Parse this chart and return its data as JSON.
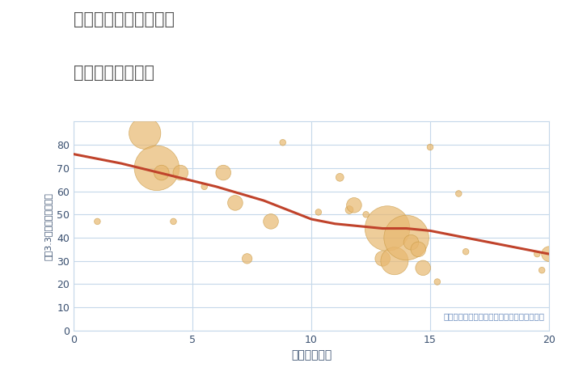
{
  "title_line1": "兵庫県宝塚市大原野の",
  "title_line2": "駅距離別土地価格",
  "xlabel": "駅距離（分）",
  "ylabel": "坪（3.3㎡）単価（万円）",
  "annotation": "円の大きさは、取引のあった物件面積を示す",
  "fig_bg_color": "#ffffff",
  "plot_bg_color": "#ffffff",
  "grid_color": "#c5d8ea",
  "scatter_color": "#e8b870",
  "scatter_alpha": 0.7,
  "scatter_edge_color": "#c89840",
  "scatter_edge_width": 0.5,
  "trend_color": "#c0432b",
  "trend_lw": 2.2,
  "title_color": "#555555",
  "axis_color": "#3a5070",
  "annotation_color": "#6688bb",
  "xlim": [
    0,
    20
  ],
  "ylim": [
    0,
    90
  ],
  "xticks": [
    0,
    5,
    10,
    15,
    20
  ],
  "yticks": [
    0,
    10,
    20,
    30,
    40,
    50,
    60,
    70,
    80
  ],
  "scatter_x": [
    1,
    3,
    3.5,
    3.7,
    4.2,
    4.5,
    5.5,
    6.3,
    6.8,
    7.3,
    8.3,
    8.8,
    10.3,
    11.2,
    11.6,
    11.8,
    12.3,
    13.0,
    13.2,
    13.5,
    14.0,
    14.2,
    14.5,
    14.7,
    15.0,
    15.3,
    16.2,
    16.5,
    19.5,
    19.7,
    20.0
  ],
  "scatter_y": [
    47,
    85,
    70,
    68,
    47,
    68,
    62,
    68,
    55,
    31,
    47,
    81,
    51,
    66,
    52,
    54,
    50,
    31,
    44,
    30,
    40,
    38,
    35,
    27,
    79,
    21,
    59,
    34,
    33,
    26,
    33
  ],
  "scatter_size": [
    30,
    800,
    1600,
    180,
    30,
    180,
    30,
    180,
    180,
    80,
    180,
    30,
    30,
    50,
    50,
    180,
    30,
    180,
    1600,
    600,
    1600,
    180,
    180,
    180,
    30,
    30,
    30,
    30,
    30,
    30,
    180
  ],
  "trend_x": [
    0,
    2,
    4,
    6,
    8,
    9,
    10,
    11,
    12,
    13,
    14,
    15,
    16,
    17,
    18,
    19,
    20
  ],
  "trend_y": [
    76,
    72,
    67,
    62,
    56,
    52,
    48,
    46,
    45,
    44,
    44,
    43,
    41,
    39,
    37,
    35,
    33
  ]
}
